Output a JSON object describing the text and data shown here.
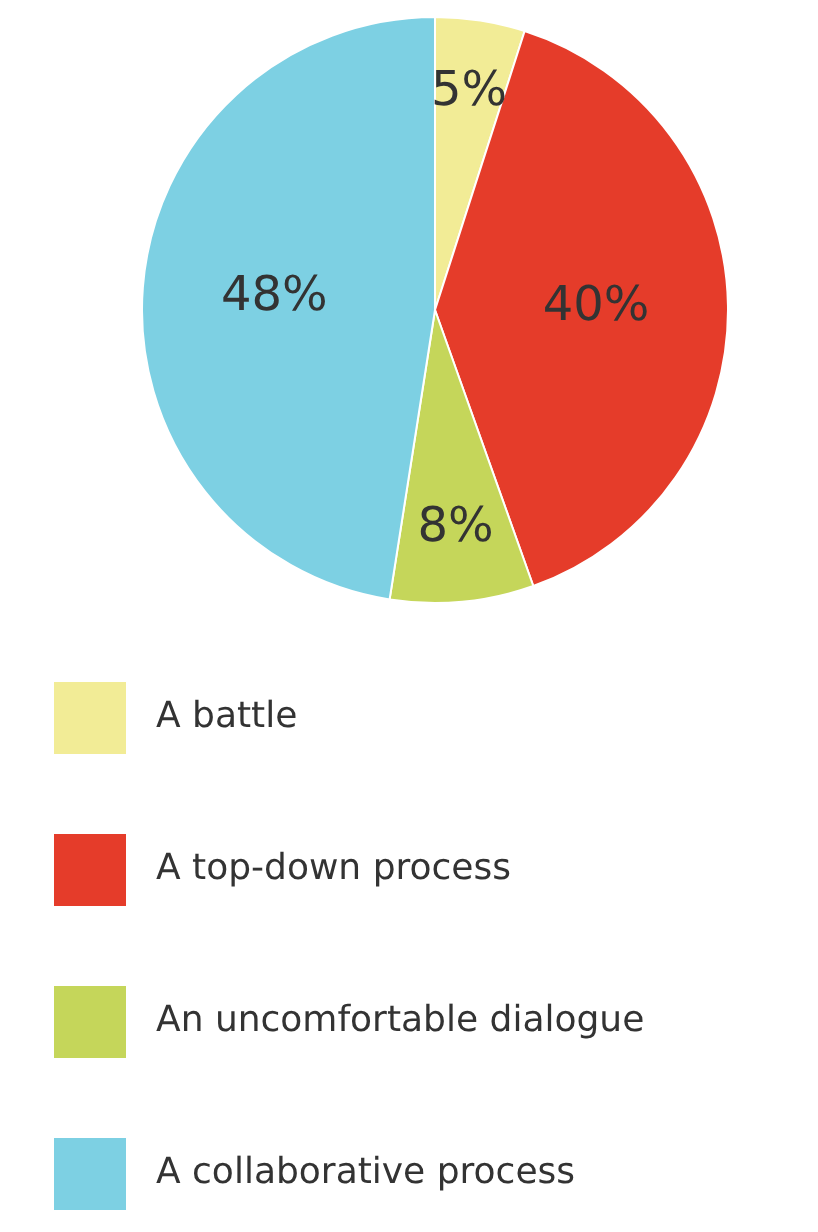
{
  "chart_data": {
    "type": "pie",
    "categories": [
      "A battle",
      "A top-down process",
      "An uncomfortable dialogue",
      "A collaborative process"
    ],
    "values": [
      5,
      40,
      8,
      48
    ],
    "colors": [
      "#f2ec96",
      "#e53c2a",
      "#c5d65a",
      "#7dd0e3"
    ],
    "value_labels": [
      "5%",
      "40%",
      "8%",
      "48%"
    ],
    "legend": "bottom"
  }
}
